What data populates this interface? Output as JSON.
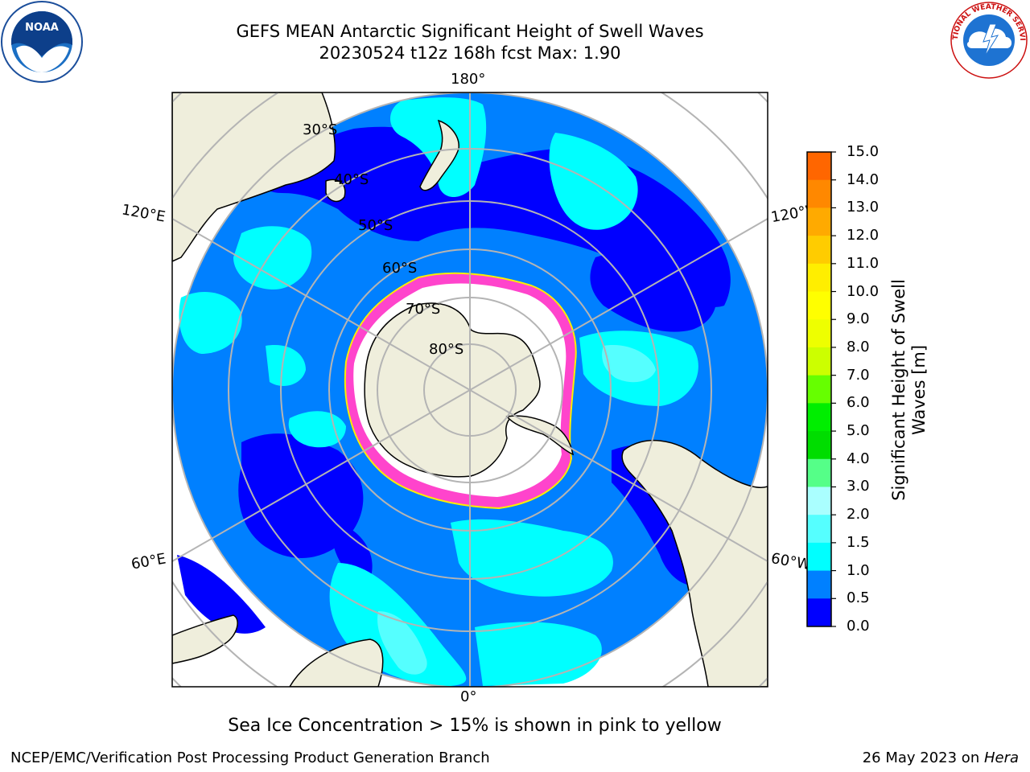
{
  "header": {
    "title": "GEFS MEAN Antarctic Significant Height of Swell Waves",
    "subtitle": "20230524 t12z 168h fcst   Max: 1.90"
  },
  "map": {
    "projection": "south-polar-stereographic",
    "longitude_labels": {
      "top": "180°",
      "left_upper": "120°E",
      "right_upper": "120°W",
      "left_lower": "60°E",
      "right_lower": "60°W",
      "bottom": "0°"
    },
    "latitude_labels": [
      "30°S",
      "40°S",
      "50°S",
      "60°S",
      "70°S",
      "80°S"
    ],
    "colors": {
      "land": "#efeedc",
      "ocean_0_0.5": "#0000ff",
      "ocean_0.5_1.0": "#0080ff",
      "ocean_1.0_1.5": "#00ffff",
      "ocean_1.5_2.0": "#55ffff",
      "sea_ice_pink": "#ff44cc",
      "sea_ice_yellow": "#ffee00",
      "graticule": "#b4b4b4"
    }
  },
  "colorbar": {
    "title_line1": "Significant Height of Swell",
    "title_line2": "Waves [m]",
    "ticks": [
      "15.0",
      "14.0",
      "13.0",
      "12.0",
      "11.0",
      "10.0",
      "9.0",
      "8.0",
      "7.0",
      "6.0",
      "5.0",
      "4.0",
      "3.0",
      "2.0",
      "1.5",
      "1.0",
      "0.5",
      "0.0"
    ],
    "colors": [
      "#ff0000",
      "#ff3300",
      "#ff6600",
      "#ff8800",
      "#ffaa00",
      "#ffcc00",
      "#ffee00",
      "#ffff00",
      "#eeff00",
      "#ccff00",
      "#66ff00",
      "#00ee00",
      "#00dd00",
      "#55ff88",
      "#aaffff",
      "#55ffff",
      "#00ffff",
      "#0080ff",
      "#0000ff"
    ]
  },
  "caption": "Sea Ice Concentration > 15% is shown in pink to yellow",
  "footer": {
    "left": "NCEP/EMC/Verification Post Processing Product Generation Branch",
    "right_date": "26 May 2023 on ",
    "right_host": "Hera"
  },
  "logos": {
    "left_icon": "noaa-logo",
    "right_icon": "nws-logo",
    "noaa_text": "NOAA",
    "nws_arc_text": "NATIONAL WEATHER SERVICE"
  }
}
